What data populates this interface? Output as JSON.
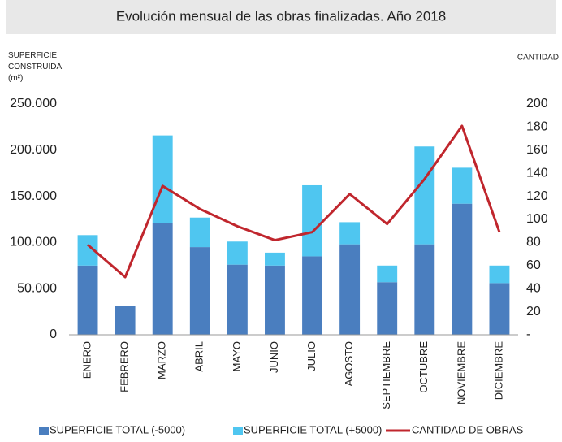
{
  "chart_data": {
    "type": "bar",
    "stacked": true,
    "title": "Evolución mensual de las obras finalizadas. Año 2018",
    "ylabel": "SUPERFICIE CONSTRUIDA (m²)",
    "y2label": "CANTIDAD",
    "categories": [
      "ENERO",
      "FEBRERO",
      "MARZO",
      "ABRIL",
      "MAYO",
      "JUNIO",
      "JULIO",
      "AGOSTO",
      "SEPTIEMBRE",
      "OCTUBRE",
      "NOVIEMBRE",
      "DICIEMBRE"
    ],
    "series": [
      {
        "name": "SUPERFICIE TOTAL (-5000)",
        "color": "#4a7ebf",
        "type": "bar",
        "values": [
          75000,
          31000,
          121000,
          95000,
          76000,
          75000,
          85000,
          98000,
          57000,
          98000,
          142000,
          56000
        ]
      },
      {
        "name": "SUPERFICIE TOTAL (+5000)",
        "color": "#4fc6f0",
        "type": "bar",
        "values": [
          33000,
          0,
          95000,
          32000,
          25000,
          14000,
          77000,
          24000,
          18000,
          106000,
          39000,
          19000
        ]
      },
      {
        "name": "CANTIDAD DE OBRAS",
        "color": "#c0262d",
        "type": "line",
        "axis": "y2",
        "values": [
          78,
          50,
          129,
          109,
          94,
          82,
          89,
          122,
          96,
          135,
          181,
          89
        ]
      }
    ],
    "ylim": [
      0,
      250000
    ],
    "yticks": [
      0,
      {
        "value": 50000,
        "label": "50.000"
      },
      {
        "value": 100000,
        "label": "100.000"
      },
      {
        "value": 150000,
        "label": "150.000"
      },
      {
        "value": 200000,
        "label": "200.000"
      },
      {
        "value": 250000,
        "label": "250.000"
      }
    ],
    "y2lim": [
      0,
      200
    ],
    "y2ticks": [
      {
        "value": 0,
        "label": "-"
      },
      20,
      40,
      60,
      80,
      100,
      120,
      140,
      160,
      180,
      200
    ],
    "grid": false,
    "legend": "bottom"
  }
}
